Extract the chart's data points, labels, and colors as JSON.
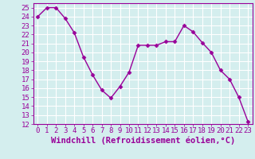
{
  "x": [
    0,
    1,
    2,
    3,
    4,
    5,
    6,
    7,
    8,
    9,
    10,
    11,
    12,
    13,
    14,
    15,
    16,
    17,
    18,
    19,
    20,
    21,
    22,
    23
  ],
  "y": [
    24,
    25,
    25,
    23.8,
    22.2,
    19.5,
    17.5,
    15.8,
    14.9,
    16.2,
    17.8,
    20.8,
    20.8,
    20.8,
    21.2,
    21.2,
    23.0,
    22.3,
    21.1,
    20.0,
    18.0,
    17.0,
    15.0,
    12.3
  ],
  "line_color": "#990099",
  "marker": "D",
  "marker_size": 2.5,
  "bg_color": "#d4eeee",
  "grid_color": "#ffffff",
  "xlabel": "Windchill (Refroidissement éolien,°C)",
  "xlabel_color": "#990099",
  "tick_color": "#990099",
  "ylim": [
    12,
    25.5
  ],
  "xlim": [
    -0.5,
    23.5
  ],
  "yticks": [
    12,
    13,
    14,
    15,
    16,
    17,
    18,
    19,
    20,
    21,
    22,
    23,
    24,
    25
  ],
  "xticks": [
    0,
    1,
    2,
    3,
    4,
    5,
    6,
    7,
    8,
    9,
    10,
    11,
    12,
    13,
    14,
    15,
    16,
    17,
    18,
    19,
    20,
    21,
    22,
    23
  ],
  "tick_fontsize": 6.5,
  "xlabel_fontsize": 7.5
}
